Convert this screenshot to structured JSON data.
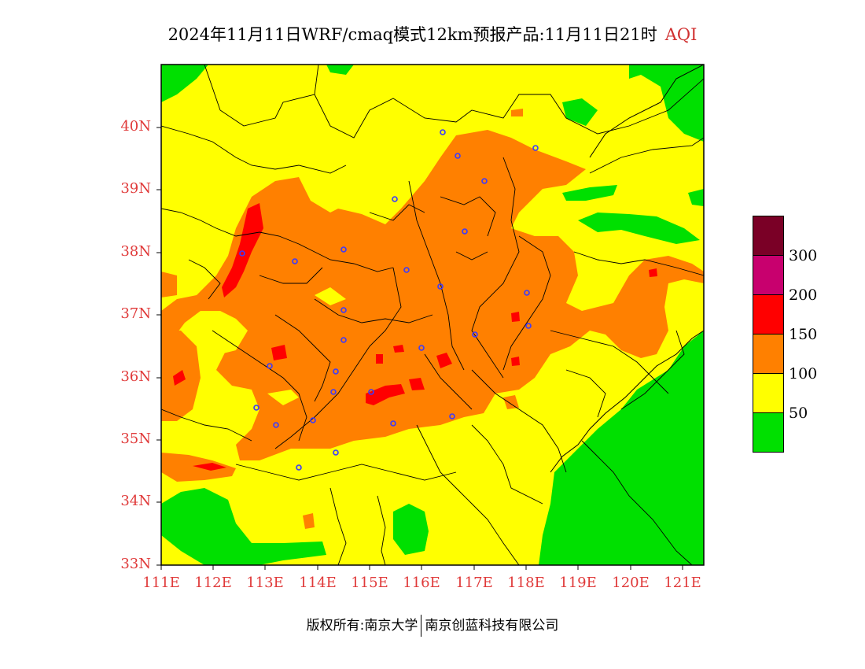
{
  "title": {
    "main": "2024年11月11日WRF/cmaq模式12km预报产品:11月11日21时",
    "variable": "AQI"
  },
  "axes": {
    "lat_labels": [
      "40N",
      "39N",
      "38N",
      "37N",
      "36N",
      "35N",
      "34N",
      "33N"
    ],
    "lon_labels": [
      "111E",
      "112E",
      "113E",
      "114E",
      "115E",
      "116E",
      "117E",
      "118E",
      "119E",
      "120E",
      "121E"
    ],
    "lat_range": [
      33,
      41
    ],
    "lon_range": [
      111,
      121.4
    ]
  },
  "legend": {
    "levels": [
      {
        "label": "",
        "color": "#7a0026"
      },
      {
        "label": "300",
        "color": "#c8006e"
      },
      {
        "label": "200",
        "color": "#ff0000"
      },
      {
        "label": "150",
        "color": "#ff8000"
      },
      {
        "label": "100",
        "color": "#ffff00"
      },
      {
        "label": "50",
        "color": "#00e000"
      }
    ]
  },
  "footer": {
    "left": "版权所有:南京大学",
    "right": "南京创蓝科技有限公司"
  },
  "colors": {
    "good": "#00e000",
    "moderate": "#ffff00",
    "usg": "#ff8000",
    "unhealthy": "#ff0000",
    "label": "#e03a3a",
    "station": "#3a3aff"
  }
}
